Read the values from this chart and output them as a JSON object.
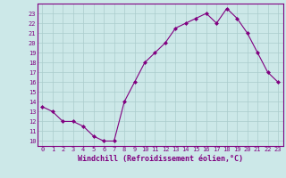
{
  "x": [
    0,
    1,
    2,
    3,
    4,
    5,
    6,
    7,
    8,
    9,
    10,
    11,
    12,
    13,
    14,
    15,
    16,
    17,
    18,
    19,
    20,
    21,
    22,
    23
  ],
  "y": [
    13.5,
    13.0,
    12.0,
    12.0,
    11.5,
    10.5,
    10.0,
    10.0,
    14.0,
    16.0,
    18.0,
    19.0,
    20.0,
    21.5,
    22.0,
    22.5,
    23.0,
    22.0,
    23.5,
    22.5,
    21.0,
    19.0,
    17.0,
    16.0
  ],
  "xlim": [
    -0.5,
    23.5
  ],
  "ylim": [
    9.5,
    24.0
  ],
  "yticks": [
    10,
    11,
    12,
    13,
    14,
    15,
    16,
    17,
    18,
    19,
    20,
    21,
    22,
    23
  ],
  "xticks": [
    0,
    1,
    2,
    3,
    4,
    5,
    6,
    7,
    8,
    9,
    10,
    11,
    12,
    13,
    14,
    15,
    16,
    17,
    18,
    19,
    20,
    21,
    22,
    23
  ],
  "xlabel": "Windchill (Refroidissement éolien,°C)",
  "line_color": "#800080",
  "marker": "D",
  "marker_size": 2.0,
  "background_color": "#cce8e8",
  "grid_color": "#aacccc",
  "tick_fontsize": 5.0,
  "xlabel_fontsize": 6.0,
  "linewidth": 0.8
}
